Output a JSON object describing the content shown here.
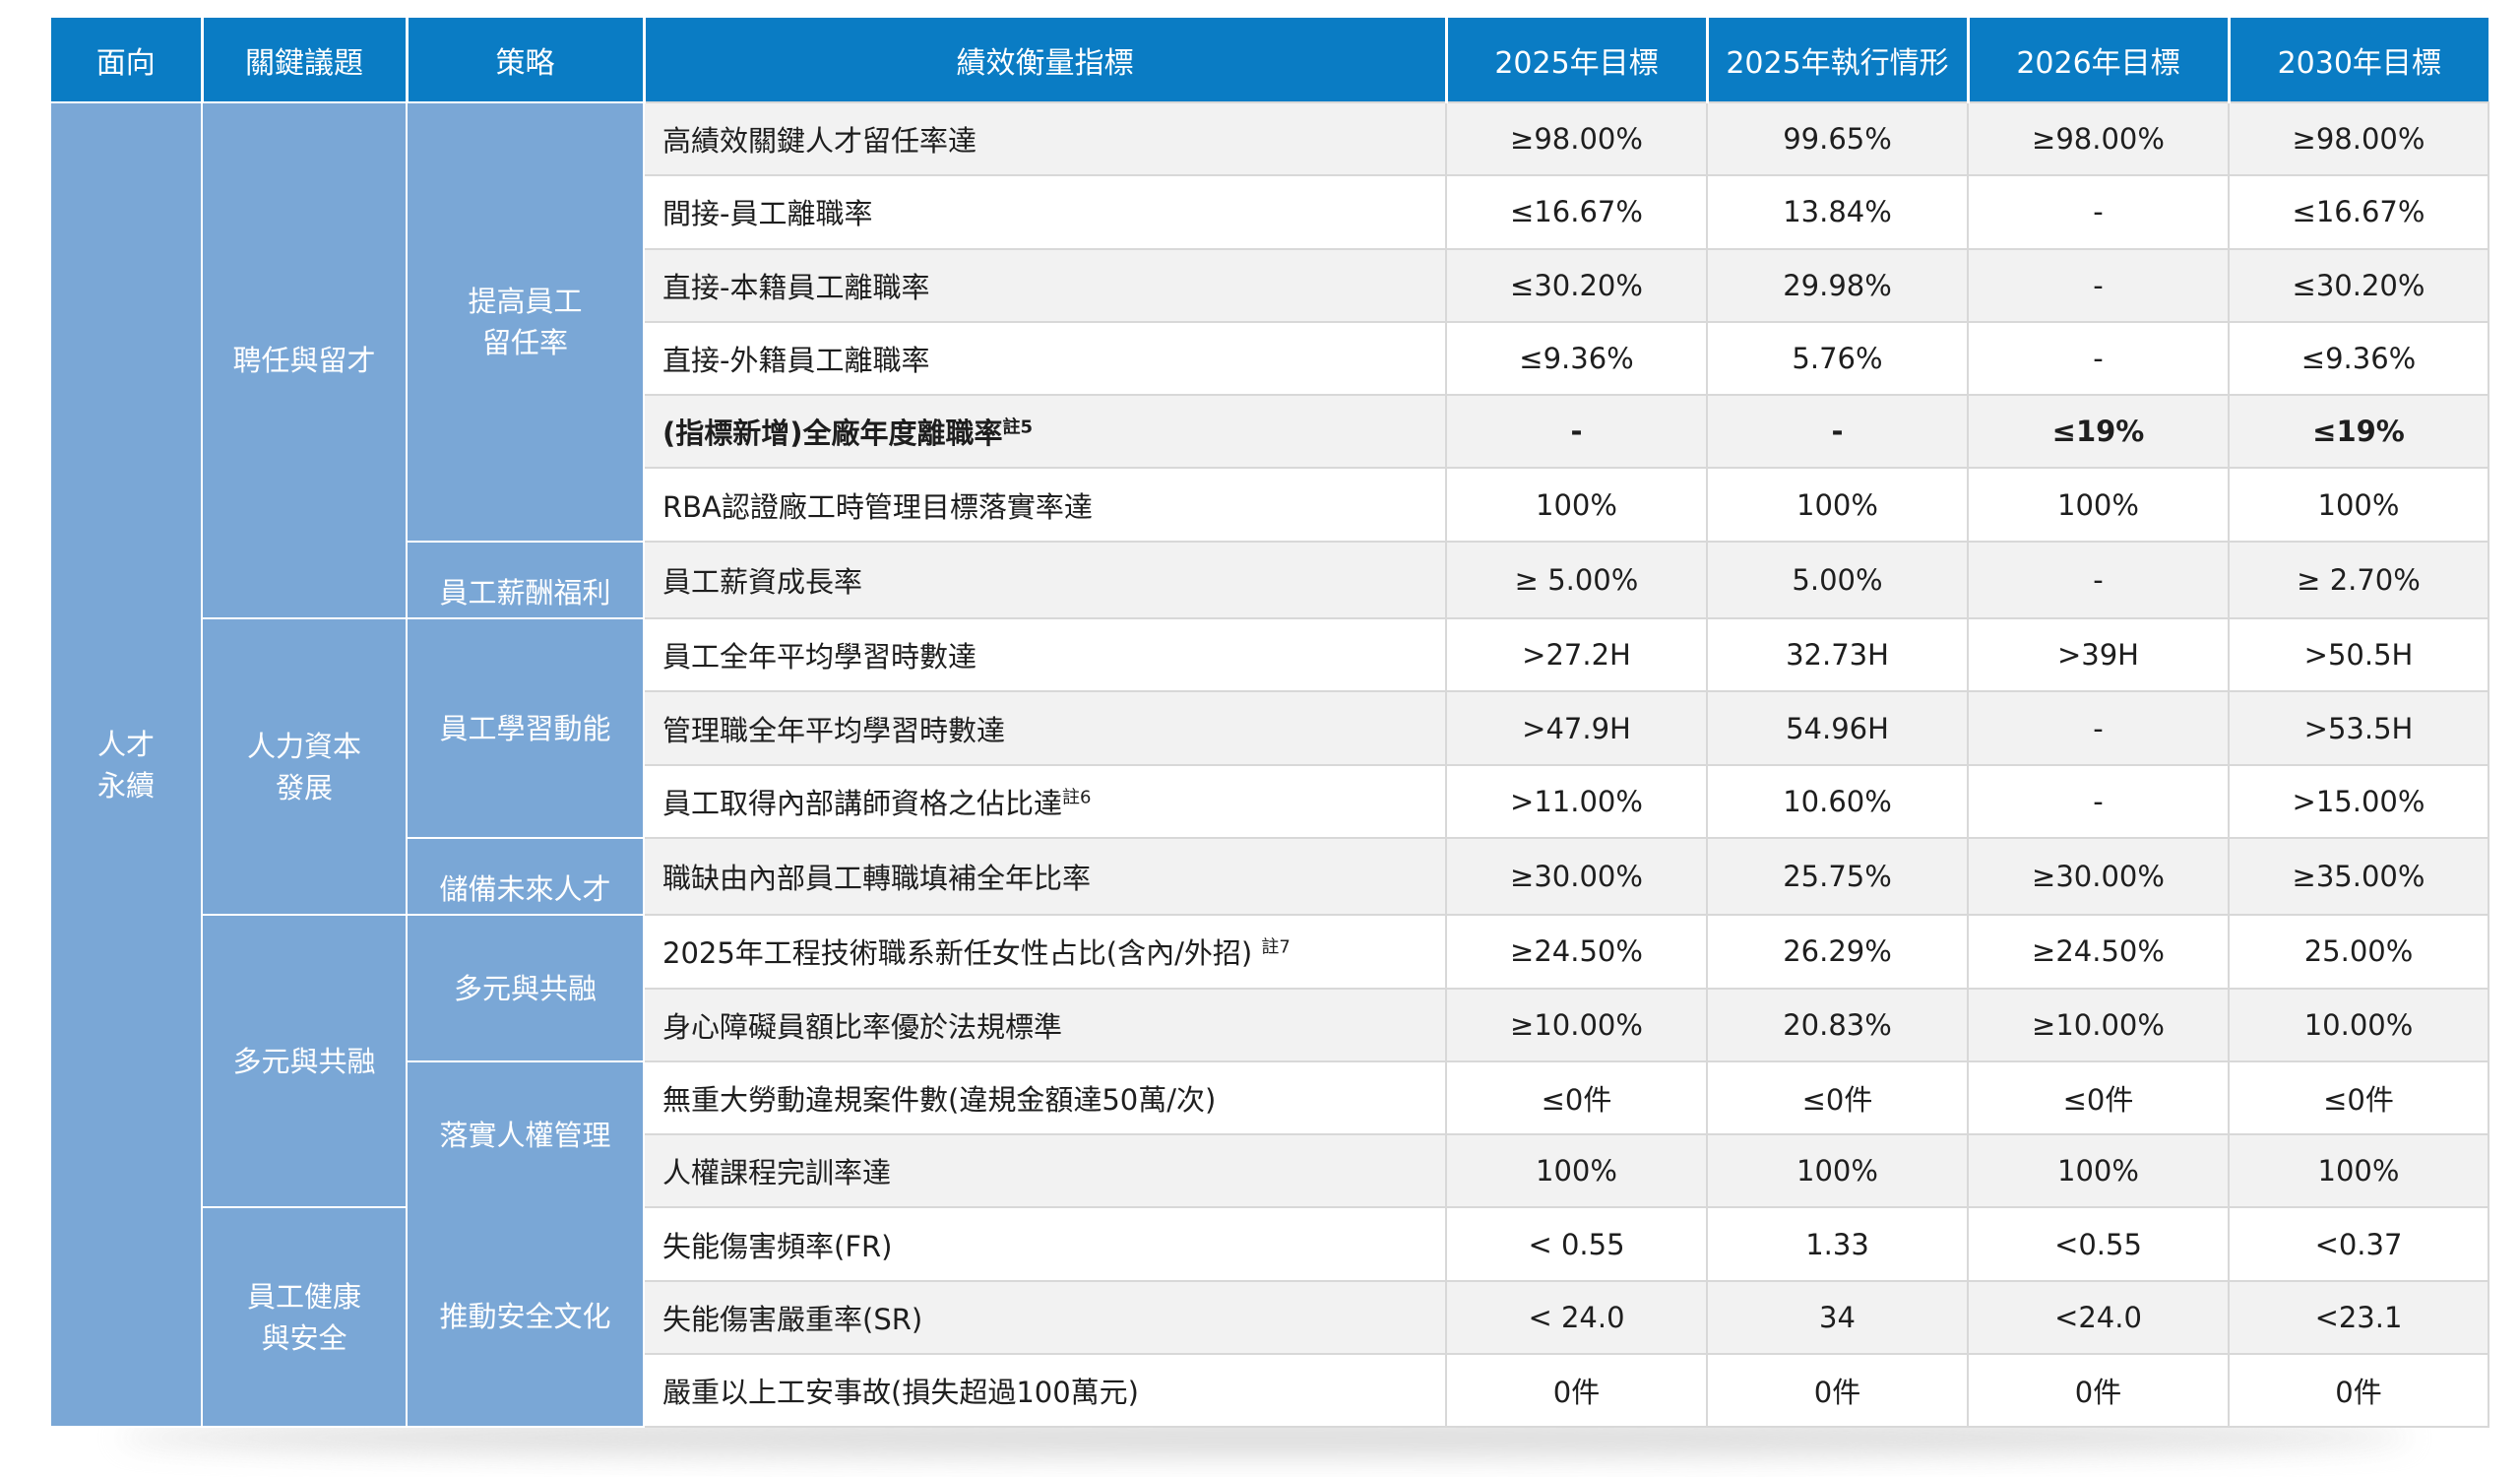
{
  "headers": [
    "面向",
    "關鍵議題",
    "策略",
    "績效衡量指標",
    "2025年目標",
    "2025年執行情形",
    "2026年目標",
    "2030年目標"
  ],
  "dimension": "人才\n永續",
  "issues": [
    "聘任與留才",
    "人力資本\n發展",
    "多元與共融",
    "員工健康\n與安全"
  ],
  "strategies": [
    "提高員工\n留任率",
    "員工薪酬福利",
    "員工學習動能",
    "儲備未來人才",
    "多元與共融",
    "落實人權管理",
    "推動安全文化"
  ],
  "rows": [
    {
      "indicator": "高績效關鍵人才留任率達",
      "t2025": "≥98.00%",
      "a2025": "99.65%",
      "t2026": "≥98.00%",
      "t2030": "≥98.00%"
    },
    {
      "indicator": "間接-員工離職率",
      "t2025": "≤16.67%",
      "a2025": "13.84%",
      "t2026": "-",
      "t2030": "≤16.67%"
    },
    {
      "indicator": "直接-本籍員工離職率",
      "t2025": "≤30.20%",
      "a2025": "29.98%",
      "t2026": "-",
      "t2030": "≤30.20%"
    },
    {
      "indicator": "直接-外籍員工離職率",
      "t2025": "≤9.36%",
      "a2025": "5.76%",
      "t2026": "-",
      "t2030": "≤9.36%"
    },
    {
      "indicator": "(指標新增)全廠年度離職率",
      "note": "註5",
      "t2025": "-",
      "a2025": "-",
      "t2026": "≤19%",
      "t2030": "≤19%"
    },
    {
      "indicator": "RBA認證廠工時管理目標落實率達",
      "t2025": "100%",
      "a2025": "100%",
      "t2026": "100%",
      "t2030": "100%"
    },
    {
      "indicator": "員工薪資成長率",
      "t2025": "≥ 5.00%",
      "a2025": "5.00%",
      "t2026": "-",
      "t2030": "≥ 2.70%"
    },
    {
      "indicator": "員工全年平均學習時數達",
      "t2025": ">27.2H",
      "a2025": "32.73H",
      "t2026": ">39H",
      "t2030": ">50.5H"
    },
    {
      "indicator": "管理職全年平均學習時數達",
      "t2025": ">47.9H",
      "a2025": "54.96H",
      "t2026": "-",
      "t2030": ">53.5H"
    },
    {
      "indicator": "員工取得內部講師資格之佔比達",
      "note": "註6",
      "t2025": ">11.00%",
      "a2025": "10.60%",
      "t2026": "-",
      "t2030": ">15.00%"
    },
    {
      "indicator": "職缺由內部員工轉職填補全年比率",
      "t2025": "≥30.00%",
      "a2025": "25.75%",
      "t2026": "≥30.00%",
      "t2030": "≥35.00%"
    },
    {
      "indicator": "2025年工程技術職系新任女性占比(含內/外招) ",
      "note": "註7",
      "t2025": "≥24.50%",
      "a2025": "26.29%",
      "t2026": "≥24.50%",
      "t2030": "25.00%"
    },
    {
      "indicator": "身心障礙員額比率優於法規標準",
      "t2025": "≥10.00%",
      "a2025": "20.83%",
      "t2026": "≥10.00%",
      "t2030": "10.00%"
    },
    {
      "indicator": "無重大勞動違規案件數(違規金額達50萬/次)",
      "t2025": "≤0件",
      "a2025": "≤0件",
      "t2026": "≤0件",
      "t2030": "≤0件"
    },
    {
      "indicator": "人權課程完訓率達",
      "t2025": "100%",
      "a2025": "100%",
      "t2026": "100%",
      "t2030": "100%"
    },
    {
      "indicator": "失能傷害頻率(FR)",
      "t2025": "< 0.55",
      "a2025": "1.33",
      "t2026": "<0.55",
      "t2030": "<0.37"
    },
    {
      "indicator": "失能傷害嚴重率(SR)",
      "t2025": "< 24.0",
      "a2025": "34",
      "t2026": "<24.0",
      "t2030": "<23.1"
    },
    {
      "indicator": "嚴重以上工安事故(損失超過100萬元)",
      "t2025": "0件",
      "a2025": "0件",
      "t2026": "0件",
      "t2030": "0件"
    }
  ]
}
